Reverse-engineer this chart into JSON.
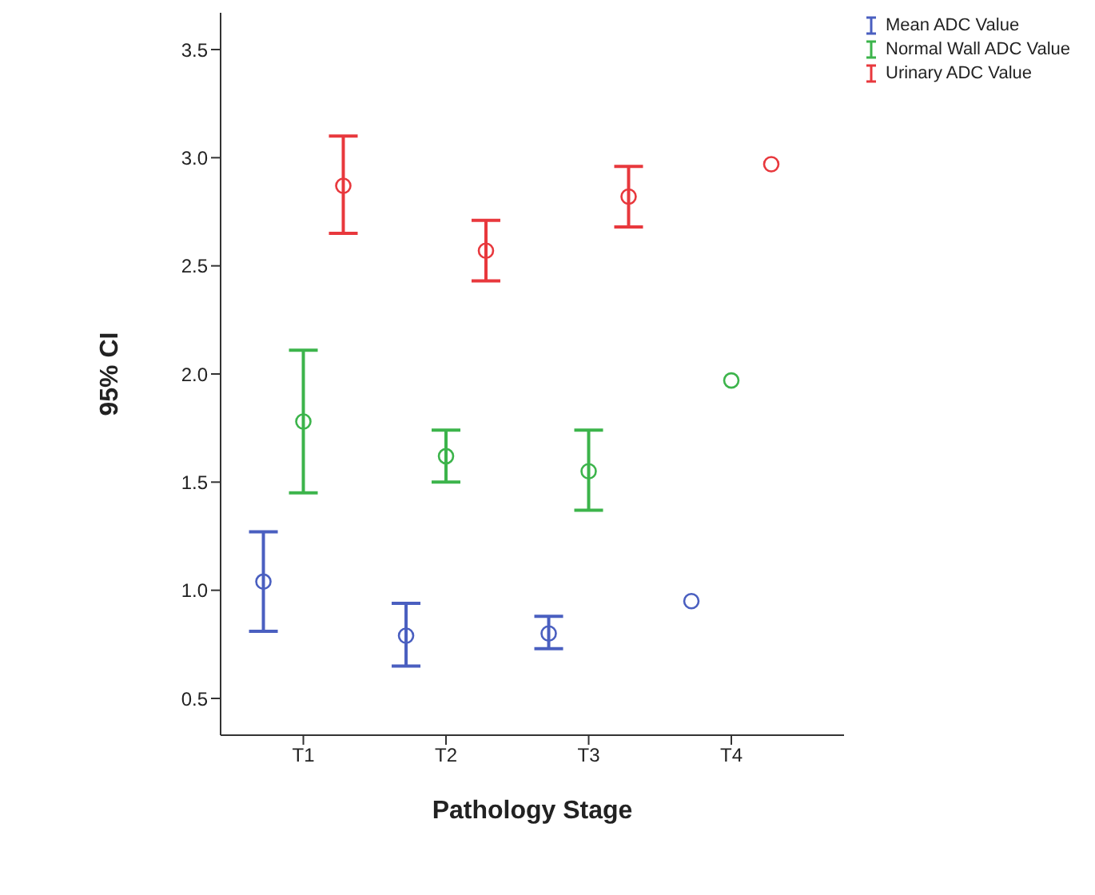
{
  "chart_data": {
    "type": "scatter",
    "xlabel": "Pathology Stage",
    "ylabel": "95% CI",
    "categories": [
      "T1",
      "T2",
      "T3",
      "T4"
    ],
    "ylim": [
      0.33,
      3.67
    ],
    "yticks": [
      0.5,
      {
        "value": 1,
        "label": "1.0"
      },
      1.5,
      {
        "value": 2,
        "label": "2.0"
      },
      2.5,
      {
        "value": 3,
        "label": "3.0"
      },
      3.5
    ],
    "marker": "circle",
    "legend": "top right",
    "grid": false,
    "series": [
      {
        "name": "Mean ADC Value",
        "color": "#4a5fc0",
        "values": [
          1.04,
          0.79,
          0.8,
          0.95
        ],
        "errors": [
          [
            0.81,
            1.27
          ],
          [
            0.65,
            0.94
          ],
          [
            0.73,
            0.88
          ],
          null
        ]
      },
      {
        "name": "Normal Wall ADC Value",
        "color": "#3cb44b",
        "values": [
          1.78,
          1.62,
          1.55,
          1.97
        ],
        "errors": [
          [
            1.45,
            2.11
          ],
          [
            1.5,
            1.74
          ],
          [
            1.37,
            1.74
          ],
          null
        ]
      },
      {
        "name": "Urinary ADC Value",
        "color": "#e8383d",
        "values": [
          2.87,
          2.57,
          2.82,
          2.97
        ],
        "errors": [
          [
            2.65,
            3.1
          ],
          [
            2.43,
            2.71
          ],
          [
            2.68,
            2.96
          ],
          null
        ]
      }
    ]
  }
}
